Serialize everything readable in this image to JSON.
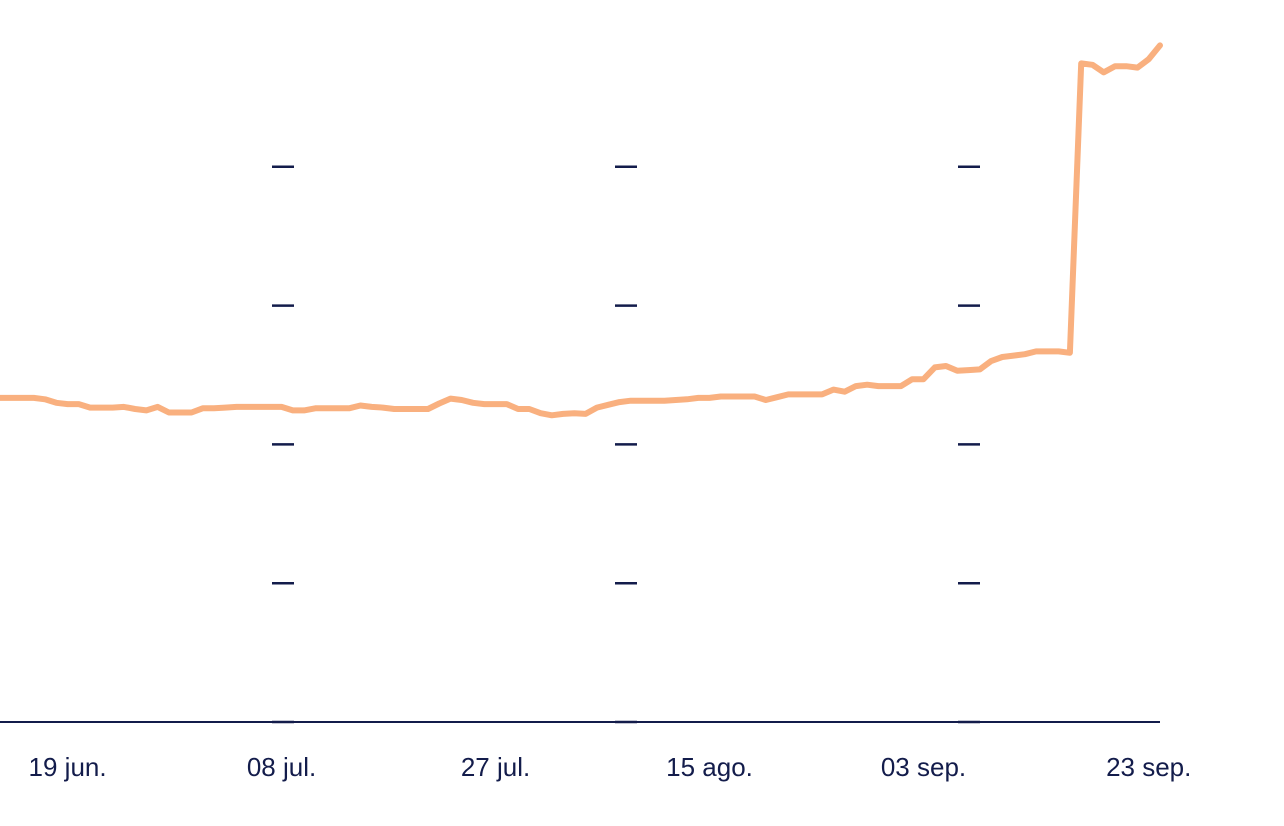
{
  "chart_data": {
    "type": "line",
    "title": "",
    "xlabel": "",
    "ylabel": "",
    "x_tick_labels": [
      {
        "label": "19 jun.",
        "index": 6
      },
      {
        "label": "08 jul.",
        "index": 25
      },
      {
        "label": "27 jul.",
        "index": 44
      },
      {
        "label": "15 ago.",
        "index": 63
      },
      {
        "label": "03 sep.",
        "index": 82
      },
      {
        "label": "23 sep.",
        "index": 102
      }
    ],
    "colors": {
      "line": "#f9b07f",
      "axis": "#131c4b",
      "tick_dash": "#131c4b",
      "text": "#131c4b"
    },
    "y_grid_dashes": true,
    "series": [
      {
        "values": [
          46.7,
          46.7,
          46.7,
          46.7,
          46.5,
          46.0,
          45.8,
          45.8,
          45.3,
          45.3,
          45.3,
          45.4,
          45.1,
          44.9,
          45.4,
          44.6,
          44.6,
          44.6,
          45.2,
          45.2,
          45.3,
          45.4,
          45.4,
          45.4,
          45.4,
          45.4,
          44.9,
          44.9,
          45.2,
          45.2,
          45.2,
          45.2,
          45.6,
          45.4,
          45.3,
          45.1,
          45.1,
          45.1,
          45.1,
          45.9,
          46.6,
          46.4,
          46.0,
          45.8,
          45.8,
          45.8,
          45.1,
          45.1,
          44.5,
          44.2,
          44.4,
          44.5,
          44.4,
          45.3,
          45.7,
          46.1,
          46.3,
          46.3,
          46.3,
          46.3,
          46.4,
          46.5,
          46.7,
          46.7,
          46.9,
          46.9,
          46.9,
          46.9,
          46.4,
          46.8,
          47.2,
          47.2,
          47.2,
          47.2,
          47.9,
          47.6,
          48.4,
          48.6,
          48.4,
          48.4,
          48.4,
          49.4,
          49.4,
          51.1,
          51.3,
          50.6,
          50.7,
          50.8,
          52.0,
          52.6,
          52.8,
          53.0,
          53.4,
          53.4,
          53.4,
          53.2,
          94.9,
          94.7,
          93.6,
          94.5,
          94.5,
          94.3,
          95.5,
          97.5
        ]
      }
    ],
    "ylim": [
      0,
      100
    ],
    "y_ticks": [
      0,
      20,
      40,
      60,
      80
    ]
  }
}
